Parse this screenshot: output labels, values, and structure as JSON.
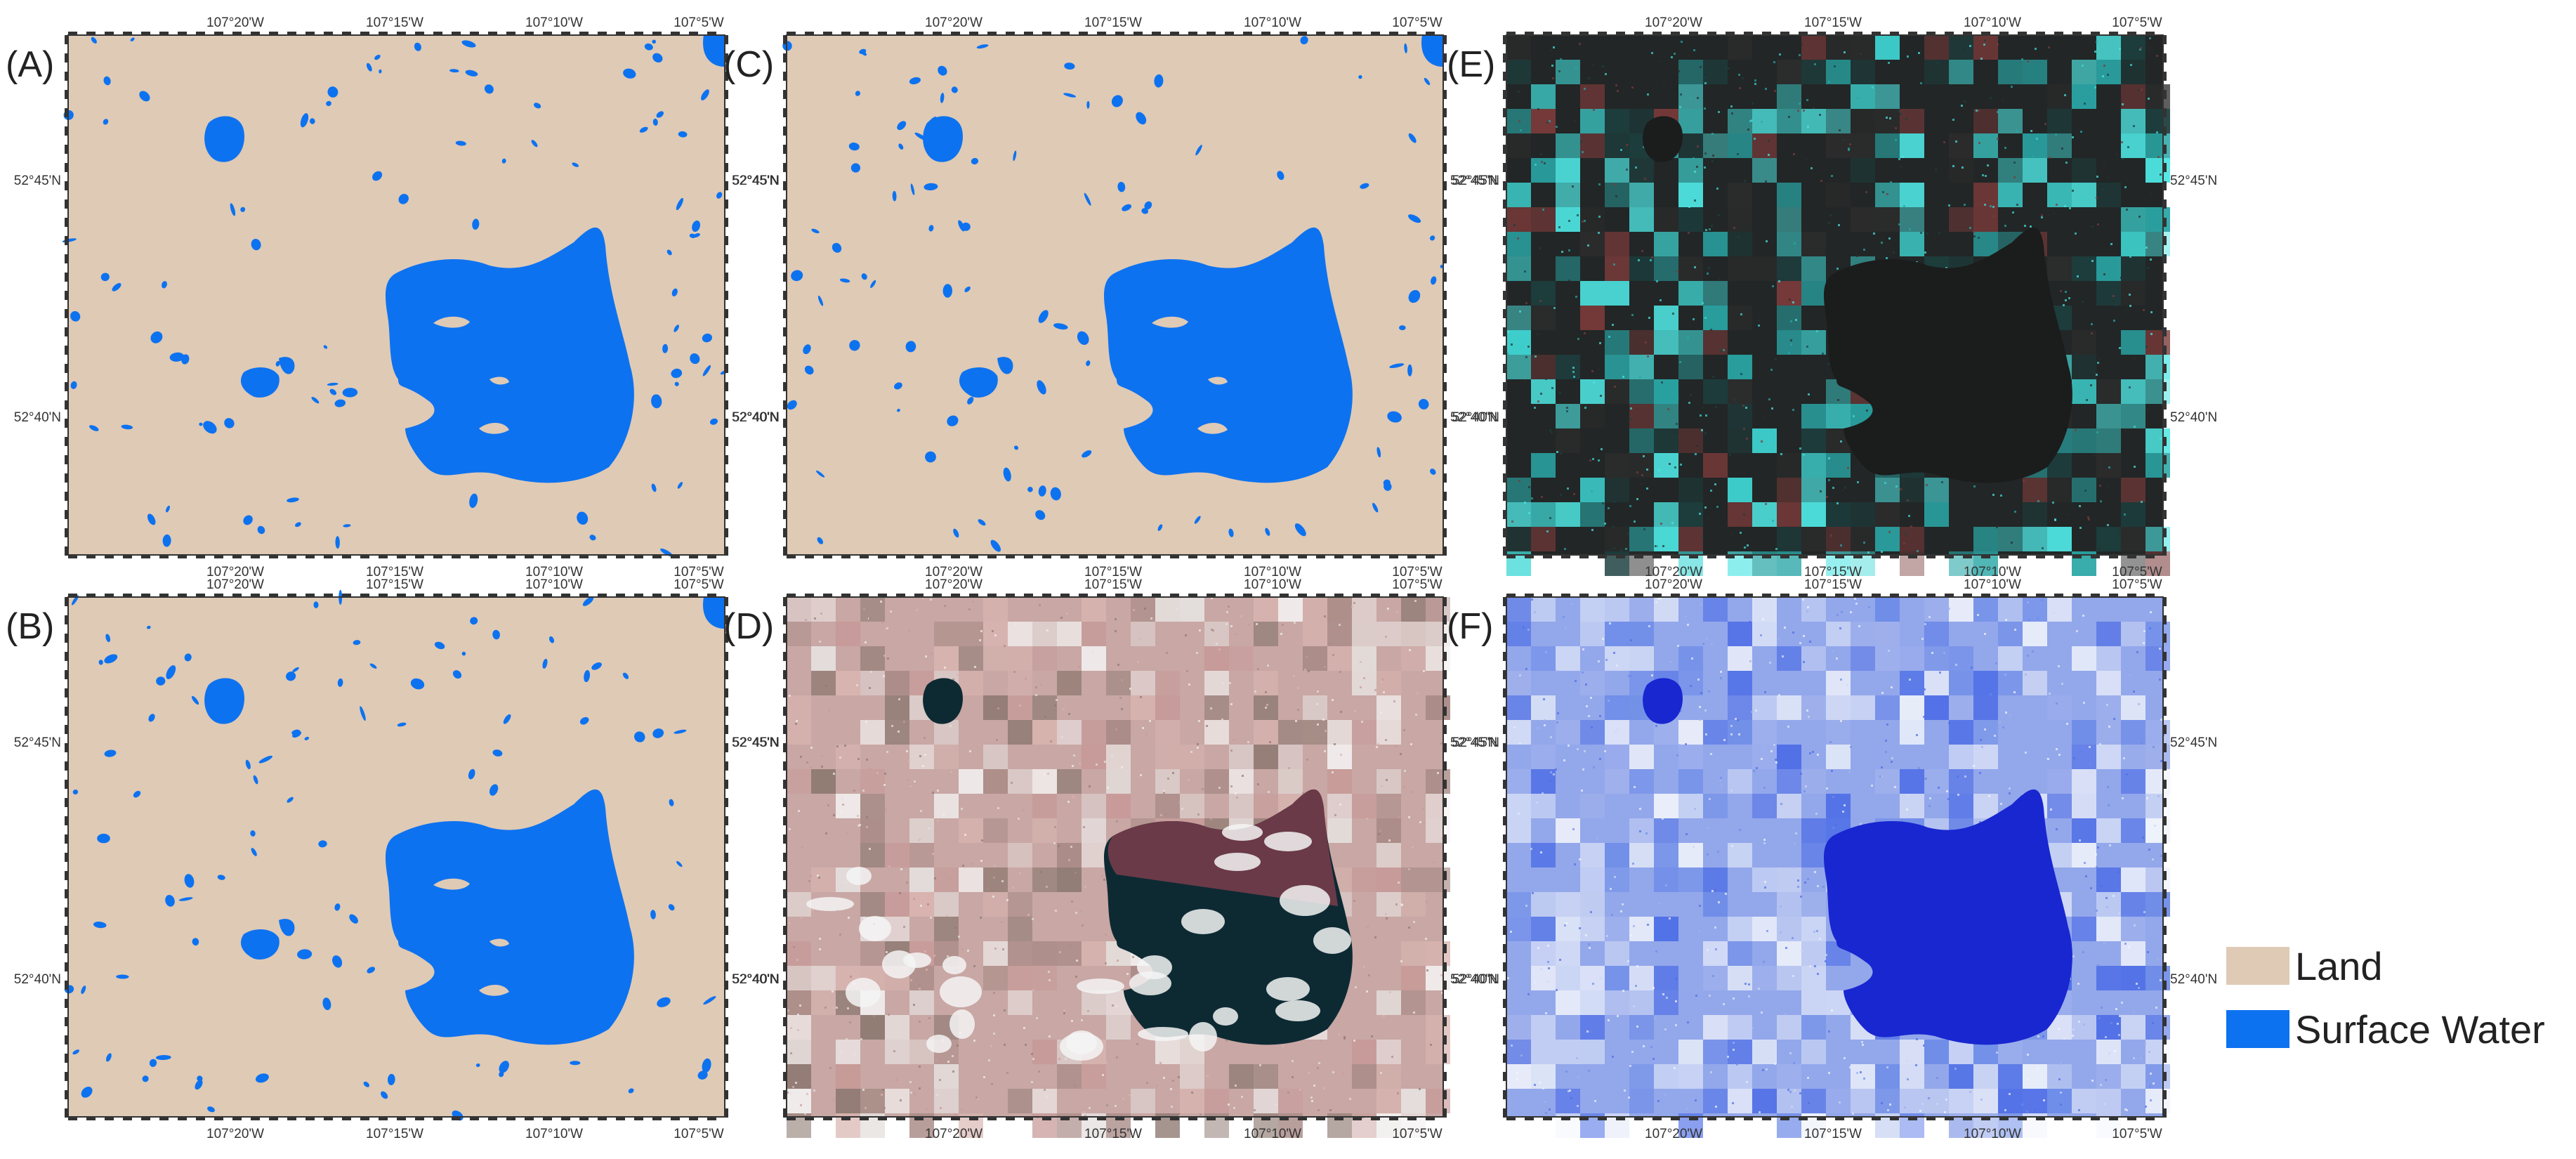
{
  "panels": [
    {
      "id": "A",
      "label": "(A)",
      "kind": "classification"
    },
    {
      "id": "C",
      "label": "(C)",
      "kind": "classification"
    },
    {
      "id": "E",
      "label": "(E)",
      "kind": "sar"
    },
    {
      "id": "B",
      "label": "(B)",
      "kind": "classification"
    },
    {
      "id": "D",
      "label": "(D)",
      "kind": "falsecolor"
    },
    {
      "id": "F",
      "label": "(F)",
      "kind": "enhanced"
    }
  ],
  "lon_ticks": [
    "107°20'W",
    "107°15'W",
    "107°10'W",
    "107°5'W"
  ],
  "lat_ticks": [
    "52°45'N",
    "52°40'N"
  ],
  "legend": {
    "land_label": "Land",
    "water_label": "Surface Water",
    "land_color": "#dfcab5",
    "water_color": "#0d72f0"
  }
}
